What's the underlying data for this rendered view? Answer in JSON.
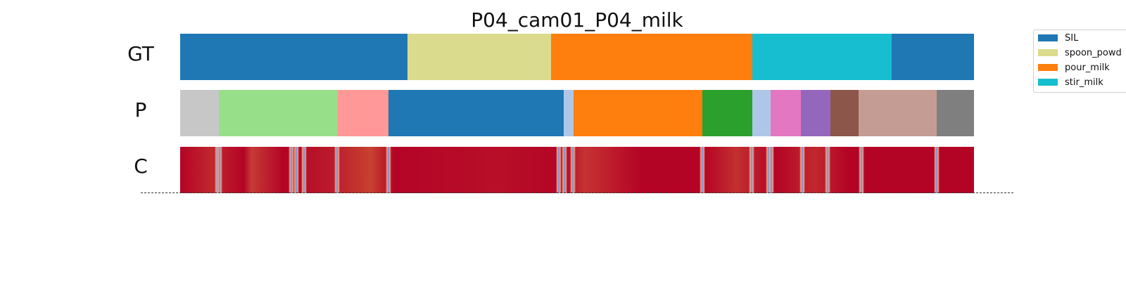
{
  "chart_data": {
    "type": "segmentation",
    "title": "P04_cam01_P04_milk",
    "duration": 100,
    "rows": [
      {
        "label": "GT",
        "segments": [
          {
            "start": 0,
            "end": 28.6,
            "color": "#1f77b4",
            "action": "SIL"
          },
          {
            "start": 28.6,
            "end": 46.7,
            "color": "#dbdb8d",
            "action": "spoon_powder"
          },
          {
            "start": 46.7,
            "end": 72.1,
            "color": "#ff7f0e",
            "action": "pour_milk"
          },
          {
            "start": 72.1,
            "end": 89.6,
            "color": "#17becf",
            "action": "stir_milk"
          },
          {
            "start": 89.6,
            "end": 100,
            "color": "#1f77b4",
            "action": "SIL"
          }
        ]
      },
      {
        "label": "P",
        "segments": [
          {
            "start": 0,
            "end": 4.9,
            "color": "#c7c7c7"
          },
          {
            "start": 4.9,
            "end": 19.9,
            "color": "#98df8a"
          },
          {
            "start": 19.9,
            "end": 26.2,
            "color": "#ff9896"
          },
          {
            "start": 26.2,
            "end": 48.3,
            "color": "#1f77b4"
          },
          {
            "start": 48.3,
            "end": 49.6,
            "color": "#aec7e8"
          },
          {
            "start": 49.6,
            "end": 65.8,
            "color": "#ff7f0e"
          },
          {
            "start": 65.8,
            "end": 72.1,
            "color": "#2ca02c"
          },
          {
            "start": 72.1,
            "end": 74.4,
            "color": "#aec7e8"
          },
          {
            "start": 74.4,
            "end": 78.2,
            "color": "#e377c2"
          },
          {
            "start": 78.2,
            "end": 81.9,
            "color": "#9467bd"
          },
          {
            "start": 81.9,
            "end": 85.5,
            "color": "#8c564b"
          },
          {
            "start": 85.5,
            "end": 95.3,
            "color": "#c49c94"
          },
          {
            "start": 95.3,
            "end": 100,
            "color": "#7f7f7f"
          }
        ]
      },
      {
        "label": "C",
        "base_color": "#b40426",
        "colormap": "coolwarm",
        "low_confidence_at": [
          4.7,
          5.0,
          14.0,
          14.6,
          15.6,
          19.8,
          26.2,
          47.7,
          48.4,
          49.5,
          65.8,
          72.0,
          74.1,
          74.5,
          78.4,
          81.6,
          85.8,
          95.3
        ]
      }
    ],
    "legend": {
      "location": "upper-right",
      "entries": [
        {
          "label": "SIL",
          "color": "#1f77b4"
        },
        {
          "label": "spoon_powd",
          "color": "#dbdb8d"
        },
        {
          "label": "pour_milk",
          "color": "#ff7f0e"
        },
        {
          "label": "stir_milk",
          "color": "#17becf"
        }
      ]
    }
  }
}
